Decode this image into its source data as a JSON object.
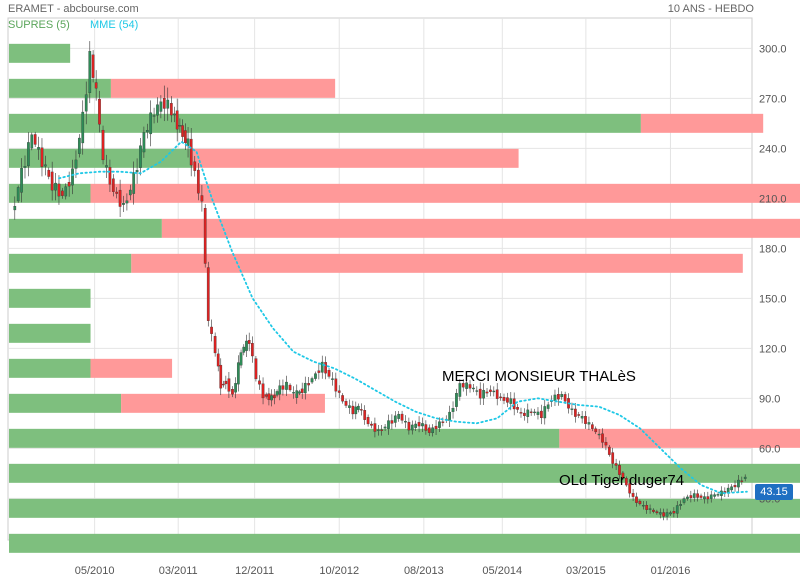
{
  "header": {
    "title": "ERAMET - abcbourse.com",
    "period": "10 ANS - HEBDO"
  },
  "legend": [
    {
      "label": "SUPRES (5)",
      "color": "#5aa55a"
    },
    {
      "label": "MME (54)",
      "color": "#1ec8e6"
    }
  ],
  "annotations": {
    "merci": "MERCI MONSIEUR THALèS",
    "signature": "OLd Tiger duger74"
  },
  "last_price": {
    "label": "43.15",
    "value": 43.15
  },
  "chart_data": {
    "type": "line",
    "xlabels": [
      "05/2010",
      "03/2011",
      "12/2011",
      "10/2012",
      "08/2013",
      "05/2014",
      "03/2015",
      "01/2016"
    ],
    "xlabel_at": [
      2010.35,
      2011.17,
      2011.92,
      2012.75,
      2013.58,
      2014.35,
      2015.17,
      2016.0
    ],
    "yticks": [
      30,
      60,
      90,
      120,
      150,
      180,
      210,
      240,
      270,
      300
    ],
    "ylim": [
      5,
      305
    ],
    "xlim": [
      2009.5,
      2016.8
    ],
    "grid": true,
    "series": [
      {
        "name": "SUPRES (5)",
        "kind": "candles",
        "up_color": "#2e8b57",
        "down_color": "#dd2222",
        "x": [
          2009.55,
          2009.65,
          2009.75,
          2009.85,
          2009.95,
          2010.05,
          2010.15,
          2010.25,
          2010.32,
          2010.38,
          2010.45,
          2010.55,
          2010.65,
          2010.75,
          2010.85,
          2010.95,
          2011.05,
          2011.12,
          2011.2,
          2011.28,
          2011.35,
          2011.42,
          2011.48,
          2011.55,
          2011.6,
          2011.65,
          2011.72,
          2011.8,
          2011.88,
          2011.95,
          2012.02,
          2012.1,
          2012.18,
          2012.25,
          2012.32,
          2012.4,
          2012.5,
          2012.6,
          2012.7,
          2012.8,
          2012.9,
          2012.95,
          2013.05,
          2013.15,
          2013.25,
          2013.35,
          2013.45,
          2013.55,
          2013.65,
          2013.75,
          2013.85,
          2013.95,
          2014.05,
          2014.15,
          2014.25,
          2014.35,
          2014.45,
          2014.55,
          2014.65,
          2014.75,
          2014.85,
          2014.95,
          2015.05,
          2015.15,
          2015.25,
          2015.35,
          2015.45,
          2015.55,
          2015.65,
          2015.75,
          2015.85,
          2015.95,
          2016.05,
          2016.15,
          2016.25,
          2016.35,
          2016.45,
          2016.55,
          2016.65,
          2016.75
        ],
        "values": [
          200,
          225,
          248,
          232,
          218,
          212,
          225,
          258,
          295,
          272,
          232,
          215,
          205,
          222,
          248,
          262,
          268,
          262,
          252,
          242,
          225,
          205,
          135,
          118,
          98,
          100,
          92,
          118,
          125,
          102,
          92,
          90,
          96,
          98,
          92,
          95,
          102,
          110,
          100,
          88,
          82,
          85,
          75,
          70,
          75,
          80,
          72,
          75,
          70,
          75,
          80,
          98,
          97,
          92,
          95,
          90,
          88,
          80,
          82,
          80,
          90,
          92,
          82,
          78,
          72,
          65,
          52,
          42,
          30,
          25,
          22,
          20,
          22,
          30,
          32,
          30,
          32,
          34,
          38,
          43.15
        ]
      },
      {
        "name": "MME (54)",
        "kind": "line",
        "color": "#1ec8e6",
        "x": [
          2010.0,
          2010.2,
          2010.4,
          2010.6,
          2010.8,
          2011.0,
          2011.2,
          2011.35,
          2011.5,
          2011.7,
          2011.9,
          2012.1,
          2012.3,
          2012.5,
          2012.7,
          2012.9,
          2013.1,
          2013.3,
          2013.5,
          2013.7,
          2013.9,
          2014.1,
          2014.3,
          2014.5,
          2014.7,
          2014.9,
          2015.1,
          2015.3,
          2015.5,
          2015.7,
          2015.9,
          2016.1,
          2016.3,
          2016.5,
          2016.75
        ],
        "values": [
          222,
          225,
          226,
          226,
          225,
          232,
          244,
          238,
          210,
          178,
          150,
          132,
          118,
          112,
          108,
          102,
          95,
          88,
          82,
          78,
          76,
          75,
          78,
          88,
          90,
          88,
          86,
          85,
          80,
          72,
          60,
          48,
          38,
          33,
          34
        ]
      },
      {
        "name": "volume profile",
        "kind": "hbars",
        "up_color": "#7ebf7e",
        "down_color": "#ff9999",
        "bands": [
          {
            "price": 297,
            "green": 0.6,
            "red": 0.0
          },
          {
            "price": 276,
            "green": 1.0,
            "red": 2.2
          },
          {
            "price": 255,
            "green": 6.2,
            "red": 1.2
          },
          {
            "price": 234,
            "green": 1.8,
            "red": 3.2
          },
          {
            "price": 213,
            "green": 0.8,
            "red": 11.8
          },
          {
            "price": 192,
            "green": 1.5,
            "red": 7.0
          },
          {
            "price": 171,
            "green": 1.2,
            "red": 6.0
          },
          {
            "price": 150,
            "green": 0.8,
            "red": 0.0
          },
          {
            "price": 129,
            "green": 0.8,
            "red": 0.0
          },
          {
            "price": 108,
            "green": 0.8,
            "red": 0.8
          },
          {
            "price": 87,
            "green": 1.1,
            "red": 2.0
          },
          {
            "price": 66,
            "green": 5.4,
            "red": 2.4
          },
          {
            "price": 45,
            "green": 8.8,
            "red": 11.8
          },
          {
            "price": 24,
            "green": 18.8,
            "red": 16.8
          },
          {
            "price": 3,
            "green": 11.2,
            "red": 18.4
          }
        ]
      }
    ]
  }
}
